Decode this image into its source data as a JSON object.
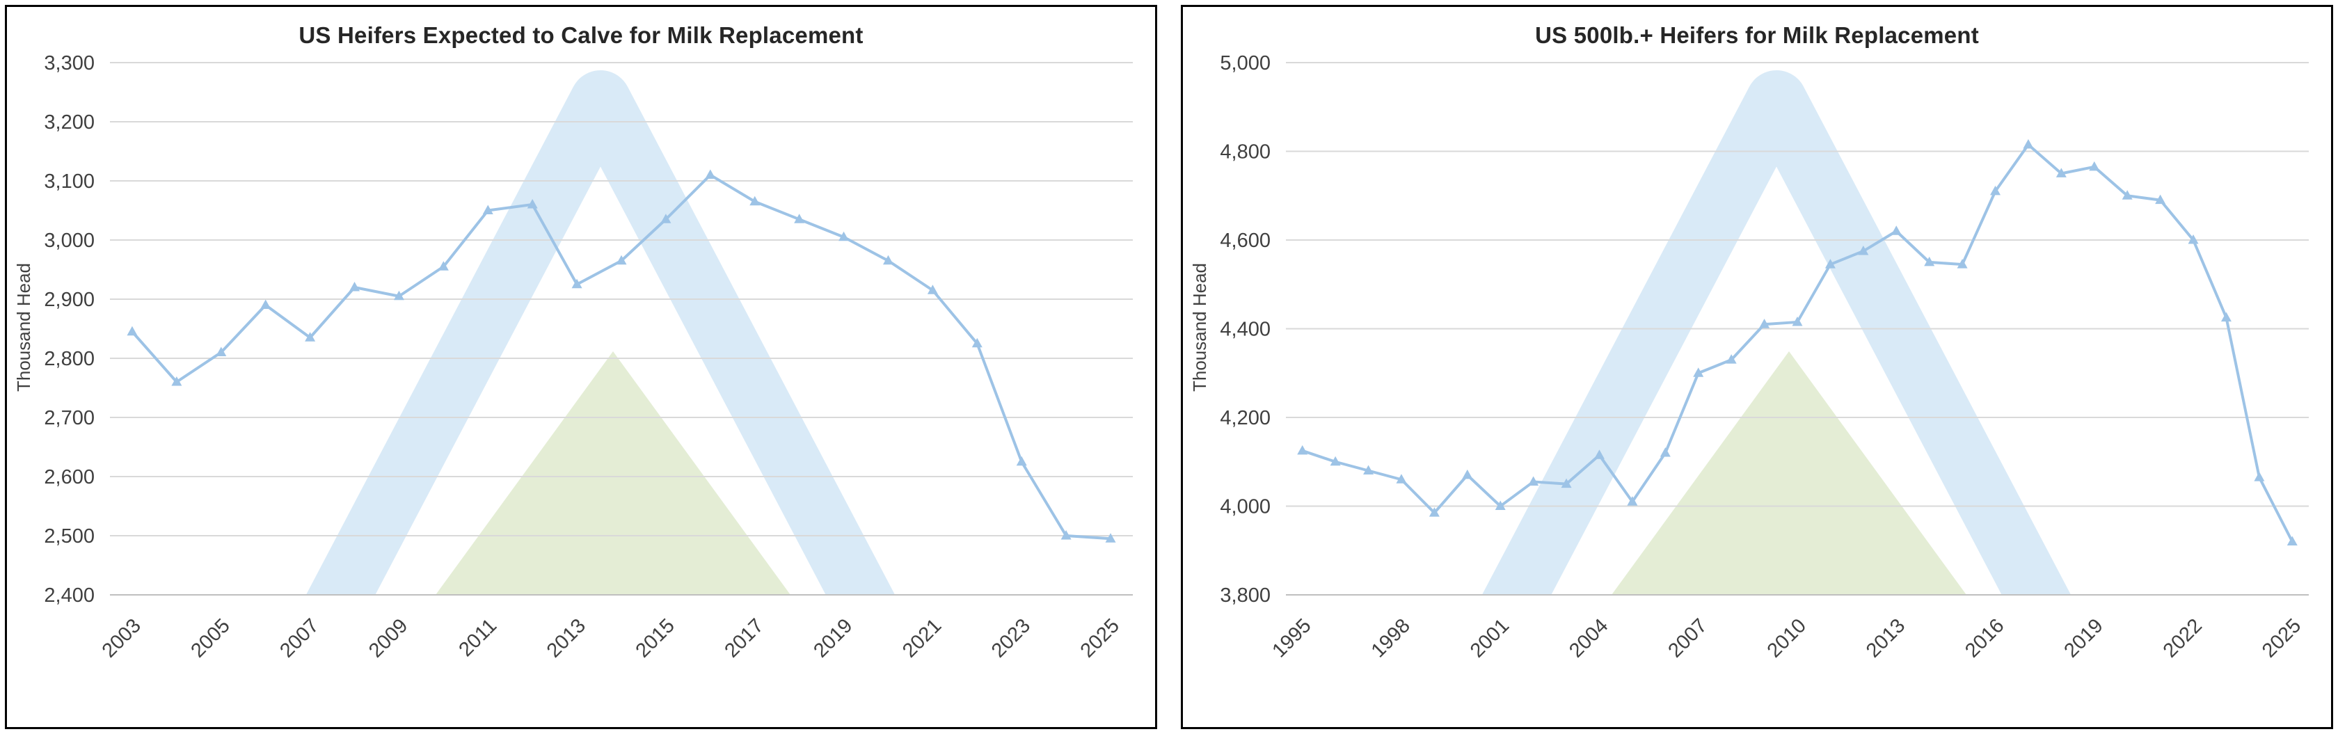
{
  "style": {
    "background": "#ffffff",
    "panel_border_color": "#000000",
    "grid_color": "#d9d9d9",
    "axis_color": "#bfbfbf",
    "tick_label_color": "#404040",
    "title_color": "#262626",
    "line_color": "#9dc3e6",
    "watermark_blue": "#d9eaf7",
    "watermark_green": "#e4edd5"
  },
  "chart_data": [
    {
      "id": "c1",
      "type": "line",
      "title": "US Heifers Expected to Calve for Milk Replacement",
      "ylabel": "Thousand Head",
      "xlabel": "",
      "ymin": 2400,
      "ymax": 3300,
      "ytick_step": 100,
      "ytick_labels": [
        "2,400",
        "2,500",
        "2,600",
        "2,700",
        "2,800",
        "2,900",
        "3,000",
        "3,100",
        "3,200",
        "3,300"
      ],
      "grid": "horizontal",
      "legend": "none",
      "line_color": "#9dc3e6",
      "marker": "triangle",
      "years": [
        2003,
        2004,
        2005,
        2006,
        2007,
        2008,
        2009,
        2010,
        2011,
        2012,
        2013,
        2014,
        2015,
        2016,
        2017,
        2018,
        2019,
        2020,
        2021,
        2022,
        2023,
        2024,
        2025
      ],
      "xtick_years": [
        2003,
        2005,
        2007,
        2009,
        2011,
        2013,
        2015,
        2017,
        2019,
        2021,
        2023,
        2025
      ],
      "values": [
        2845,
        2760,
        2810,
        2890,
        2835,
        2920,
        2905,
        2955,
        3050,
        3060,
        2925,
        2965,
        3035,
        3110,
        3065,
        3035,
        3005,
        2965,
        2915,
        2825,
        2625,
        2500,
        2495
      ]
    },
    {
      "id": "c2",
      "type": "line",
      "title": "US 500lb.+ Heifers for Milk Replacement",
      "ylabel": "Thousand Head",
      "xlabel": "",
      "ymin": 3800,
      "ymax": 5000,
      "ytick_step": 200,
      "ytick_labels": [
        "3,800",
        "4,000",
        "4,200",
        "4,400",
        "4,600",
        "4,800",
        "5,000"
      ],
      "grid": "horizontal",
      "legend": "none",
      "line_color": "#9dc3e6",
      "marker": "triangle",
      "years": [
        1995,
        1996,
        1997,
        1998,
        1999,
        2000,
        2001,
        2002,
        2003,
        2004,
        2005,
        2006,
        2007,
        2008,
        2009,
        2010,
        2011,
        2012,
        2013,
        2014,
        2015,
        2016,
        2017,
        2018,
        2019,
        2020,
        2021,
        2022,
        2023,
        2024,
        2025
      ],
      "xtick_years": [
        1995,
        1998,
        2001,
        2004,
        2007,
        2010,
        2013,
        2016,
        2019,
        2022,
        2025
      ],
      "values": [
        4125,
        4100,
        4080,
        4060,
        3985,
        4070,
        4000,
        4055,
        4050,
        4115,
        4010,
        4120,
        4300,
        4330,
        4410,
        4415,
        4545,
        4575,
        4620,
        4550,
        4545,
        4710,
        4815,
        4750,
        4765,
        4700,
        4690,
        4600,
        4425,
        4065,
        3920
      ]
    }
  ]
}
